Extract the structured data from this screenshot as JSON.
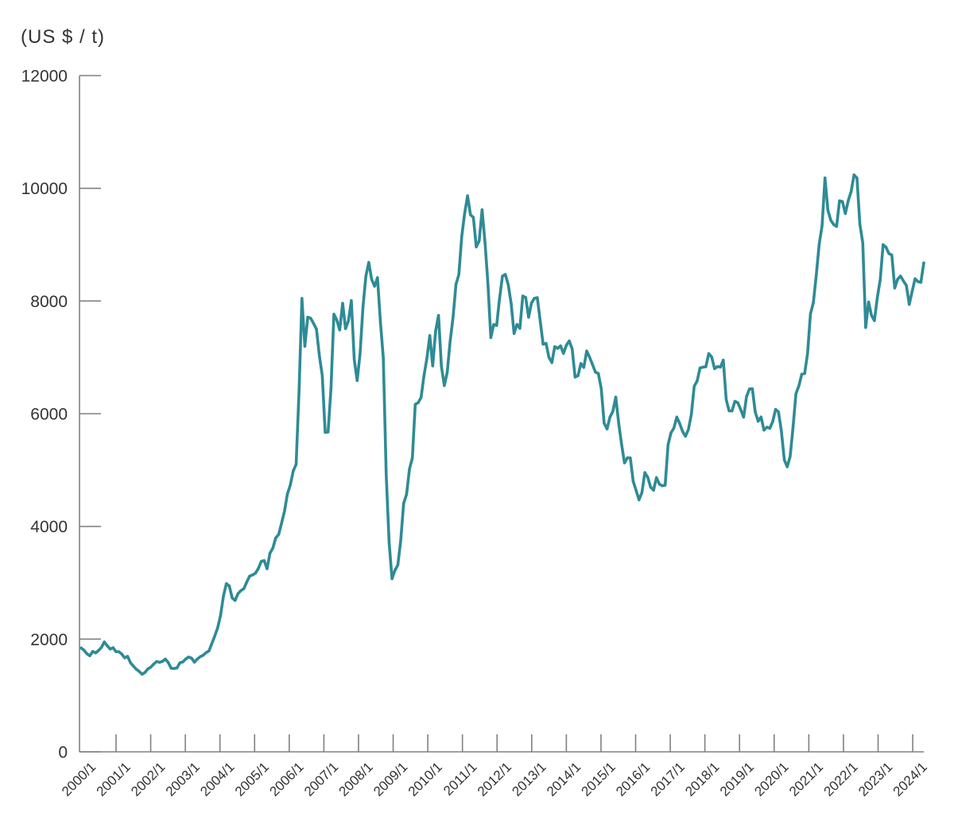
{
  "colors": {
    "axis": "#808080",
    "text": "#333333"
  },
  "chart_data": {
    "type": "line",
    "ylabel": "(US $ / t)",
    "ylim": [
      0,
      12000
    ],
    "grid": false,
    "yticks": [
      "0",
      "2000",
      "4000",
      "6000",
      "8000",
      "10000",
      "12000"
    ],
    "xticks": [
      "2000/1",
      "2001/1",
      "2002/1",
      "2003/1",
      "2004/1",
      "2005/1",
      "2006/1",
      "2007/1",
      "2008/1",
      "2009/1",
      "2010/1",
      "2011/1",
      "2012/1",
      "2013/1",
      "2014/1",
      "2015/1",
      "2016/1",
      "2017/1",
      "2018/1",
      "2019/1",
      "2020/1",
      "2021/1",
      "2022/1",
      "2023/1",
      "2024/1"
    ],
    "x": [
      "2000/1",
      "2000/2",
      "2000/3",
      "2000/4",
      "2000/5",
      "2000/6",
      "2000/7",
      "2000/8",
      "2000/9",
      "2000/10",
      "2000/11",
      "2000/12",
      "2001/1",
      "2001/2",
      "2001/3",
      "2001/4",
      "2001/5",
      "2001/6",
      "2001/7",
      "2001/8",
      "2001/9",
      "2001/10",
      "2001/11",
      "2001/12",
      "2002/1",
      "2002/2",
      "2002/3",
      "2002/4",
      "2002/5",
      "2002/6",
      "2002/7",
      "2002/8",
      "2002/9",
      "2002/10",
      "2002/11",
      "2002/12",
      "2003/1",
      "2003/2",
      "2003/3",
      "2003/4",
      "2003/5",
      "2003/6",
      "2003/7",
      "2003/8",
      "2003/9",
      "2003/10",
      "2003/11",
      "2003/12",
      "2004/1",
      "2004/2",
      "2004/3",
      "2004/4",
      "2004/5",
      "2004/6",
      "2004/7",
      "2004/8",
      "2004/9",
      "2004/10",
      "2004/11",
      "2004/12",
      "2005/1",
      "2005/2",
      "2005/3",
      "2005/4",
      "2005/5",
      "2005/6",
      "2005/7",
      "2005/8",
      "2005/9",
      "2005/10",
      "2005/11",
      "2005/12",
      "2006/1",
      "2006/2",
      "2006/3",
      "2006/4",
      "2006/5",
      "2006/6",
      "2006/7",
      "2006/8",
      "2006/9",
      "2006/10",
      "2006/11",
      "2006/12",
      "2007/1",
      "2007/2",
      "2007/3",
      "2007/4",
      "2007/5",
      "2007/6",
      "2007/7",
      "2007/8",
      "2007/9",
      "2007/10",
      "2007/11",
      "2007/12",
      "2008/1",
      "2008/2",
      "2008/3",
      "2008/4",
      "2008/5",
      "2008/6",
      "2008/7",
      "2008/8",
      "2008/9",
      "2008/10",
      "2008/11",
      "2008/12",
      "2009/1",
      "2009/2",
      "2009/3",
      "2009/4",
      "2009/5",
      "2009/6",
      "2009/7",
      "2009/8",
      "2009/9",
      "2009/10",
      "2009/11",
      "2009/12",
      "2010/1",
      "2010/2",
      "2010/3",
      "2010/4",
      "2010/5",
      "2010/6",
      "2010/7",
      "2010/8",
      "2010/9",
      "2010/10",
      "2010/11",
      "2010/12",
      "2011/1",
      "2011/2",
      "2011/3",
      "2011/4",
      "2011/5",
      "2011/6",
      "2011/7",
      "2011/8",
      "2011/9",
      "2011/10",
      "2011/11",
      "2011/12",
      "2012/1",
      "2012/2",
      "2012/3",
      "2012/4",
      "2012/5",
      "2012/6",
      "2012/7",
      "2012/8",
      "2012/9",
      "2012/10",
      "2012/11",
      "2012/12",
      "2013/1",
      "2013/2",
      "2013/3",
      "2013/4",
      "2013/5",
      "2013/6",
      "2013/7",
      "2013/8",
      "2013/9",
      "2013/10",
      "2013/11",
      "2013/12",
      "2014/1",
      "2014/2",
      "2014/3",
      "2014/4",
      "2014/5",
      "2014/6",
      "2014/7",
      "2014/8",
      "2014/9",
      "2014/10",
      "2014/11",
      "2014/12",
      "2015/1",
      "2015/2",
      "2015/3",
      "2015/4",
      "2015/5",
      "2015/6",
      "2015/7",
      "2015/8",
      "2015/9",
      "2015/10",
      "2015/11",
      "2015/12",
      "2016/1",
      "2016/2",
      "2016/3",
      "2016/4",
      "2016/5",
      "2016/6",
      "2016/7",
      "2016/8",
      "2016/9",
      "2016/10",
      "2016/11",
      "2016/12",
      "2017/1",
      "2017/2",
      "2017/3",
      "2017/4",
      "2017/5",
      "2017/6",
      "2017/7",
      "2017/8",
      "2017/9",
      "2017/10",
      "2017/11",
      "2017/12",
      "2018/1",
      "2018/2",
      "2018/3",
      "2018/4",
      "2018/5",
      "2018/6",
      "2018/7",
      "2018/8",
      "2018/9",
      "2018/10",
      "2018/11",
      "2018/12",
      "2019/1",
      "2019/2",
      "2019/3",
      "2019/4",
      "2019/5",
      "2019/6",
      "2019/7",
      "2019/8",
      "2019/9",
      "2019/10",
      "2019/11",
      "2019/12",
      "2020/1",
      "2020/2",
      "2020/3",
      "2020/4",
      "2020/5",
      "2020/6",
      "2020/7",
      "2020/8",
      "2020/9",
      "2020/10",
      "2020/11",
      "2020/12",
      "2021/1",
      "2021/2",
      "2021/3",
      "2021/4",
      "2021/5",
      "2021/6",
      "2021/7",
      "2021/8",
      "2021/9",
      "2021/10",
      "2021/11",
      "2021/12",
      "2022/1",
      "2022/2",
      "2022/3",
      "2022/4",
      "2022/5",
      "2022/6",
      "2022/7",
      "2022/8",
      "2022/9",
      "2022/10",
      "2022/11",
      "2022/12",
      "2023/1",
      "2023/2",
      "2023/3",
      "2023/4",
      "2023/5",
      "2023/6",
      "2023/7",
      "2023/8",
      "2023/9",
      "2023/10",
      "2023/11",
      "2023/12",
      "2024/1",
      "2024/2",
      "2024/3"
    ],
    "series": [
      {
        "color": "#2e8b95",
        "values": [
          1843,
          1803,
          1740,
          1705,
          1782,
          1755,
          1798,
          1853,
          1950,
          1882,
          1823,
          1848,
          1777,
          1777,
          1734,
          1668,
          1694,
          1581,
          1522,
          1466,
          1427,
          1376,
          1409,
          1472,
          1503,
          1557,
          1603,
          1588,
          1605,
          1646,
          1584,
          1483,
          1479,
          1488,
          1580,
          1595,
          1647,
          1683,
          1663,
          1590,
          1647,
          1687,
          1713,
          1760,
          1790,
          1921,
          2056,
          2201,
          2423,
          2766,
          2985,
          2943,
          2732,
          2686,
          2807,
          2860,
          2895,
          3011,
          3118,
          3138,
          3170,
          3254,
          3379,
          3394,
          3249,
          3524,
          3616,
          3797,
          3857,
          4059,
          4269,
          4577,
          4734,
          4982,
          5103,
          6387,
          8046,
          7196,
          7712,
          7695,
          7602,
          7500,
          7029,
          6675,
          5669,
          5676,
          6452,
          7766,
          7662,
          7485,
          7960,
          7509,
          7649,
          8007,
          6963,
          6587,
          7061,
          7888,
          8439,
          8685,
          8383,
          8261,
          8414,
          7634,
          6991,
          4926,
          3717,
          3072,
          3221,
          3315,
          3751,
          4407,
          4569,
          5014,
          5216,
          6165,
          6196,
          6288,
          6676,
          6982,
          7386,
          6848,
          7463,
          7745,
          6838,
          6499,
          6735,
          7284,
          7709,
          8292,
          8470,
          9147,
          9556,
          9868,
          9530,
          9483,
          8959,
          9067,
          9619,
          9041,
          8315,
          7350,
          7581,
          7566,
          8040,
          8441,
          8471,
          8289,
          7955,
          7423,
          7584,
          7515,
          8088,
          8062,
          7712,
          7966,
          8047,
          8060,
          7646,
          7234,
          7249,
          7000,
          6907,
          7190,
          7159,
          7203,
          7071,
          7215,
          7291,
          7149,
          6650,
          6674,
          6891,
          6821,
          7113,
          7002,
          6872,
          6738,
          6713,
          6446,
          5831,
          5729,
          5940,
          6042,
          6295,
          5833,
          5457,
          5127,
          5217,
          5216,
          4800,
          4639,
          4472,
          4599,
          4954,
          4873,
          4696,
          4642,
          4866,
          4750,
          4722,
          4731,
          5450,
          5661,
          5745,
          5941,
          5825,
          5684,
          5600,
          5720,
          5985,
          6486,
          6581,
          6812,
          6826,
          6834,
          7066,
          7007,
          6799,
          6838,
          6825,
          6951,
          6252,
          6051,
          6050,
          6220,
          6194,
          6073,
          5939,
          6303,
          6439,
          6443,
          6030,
          5866,
          5941,
          5709,
          5760,
          5741,
          5859,
          6077,
          6031,
          5687,
          5182,
          5058,
          5239,
          5757,
          6354,
          6492,
          6702,
          6713,
          7068,
          7772,
          7971,
          8460,
          9005,
          9336,
          10184,
          9612,
          9433,
          9357,
          9324,
          9778,
          9765,
          9551,
          9780,
          9941,
          10238,
          10183,
          9363,
          9033,
          7530,
          7983,
          7746,
          7651,
          8057,
          8375,
          8999,
          8955,
          8842,
          8815,
          8231,
          8386,
          8442,
          8354,
          8276,
          7940,
          8172,
          8394,
          8344,
          8331,
          8676
        ]
      }
    ]
  }
}
